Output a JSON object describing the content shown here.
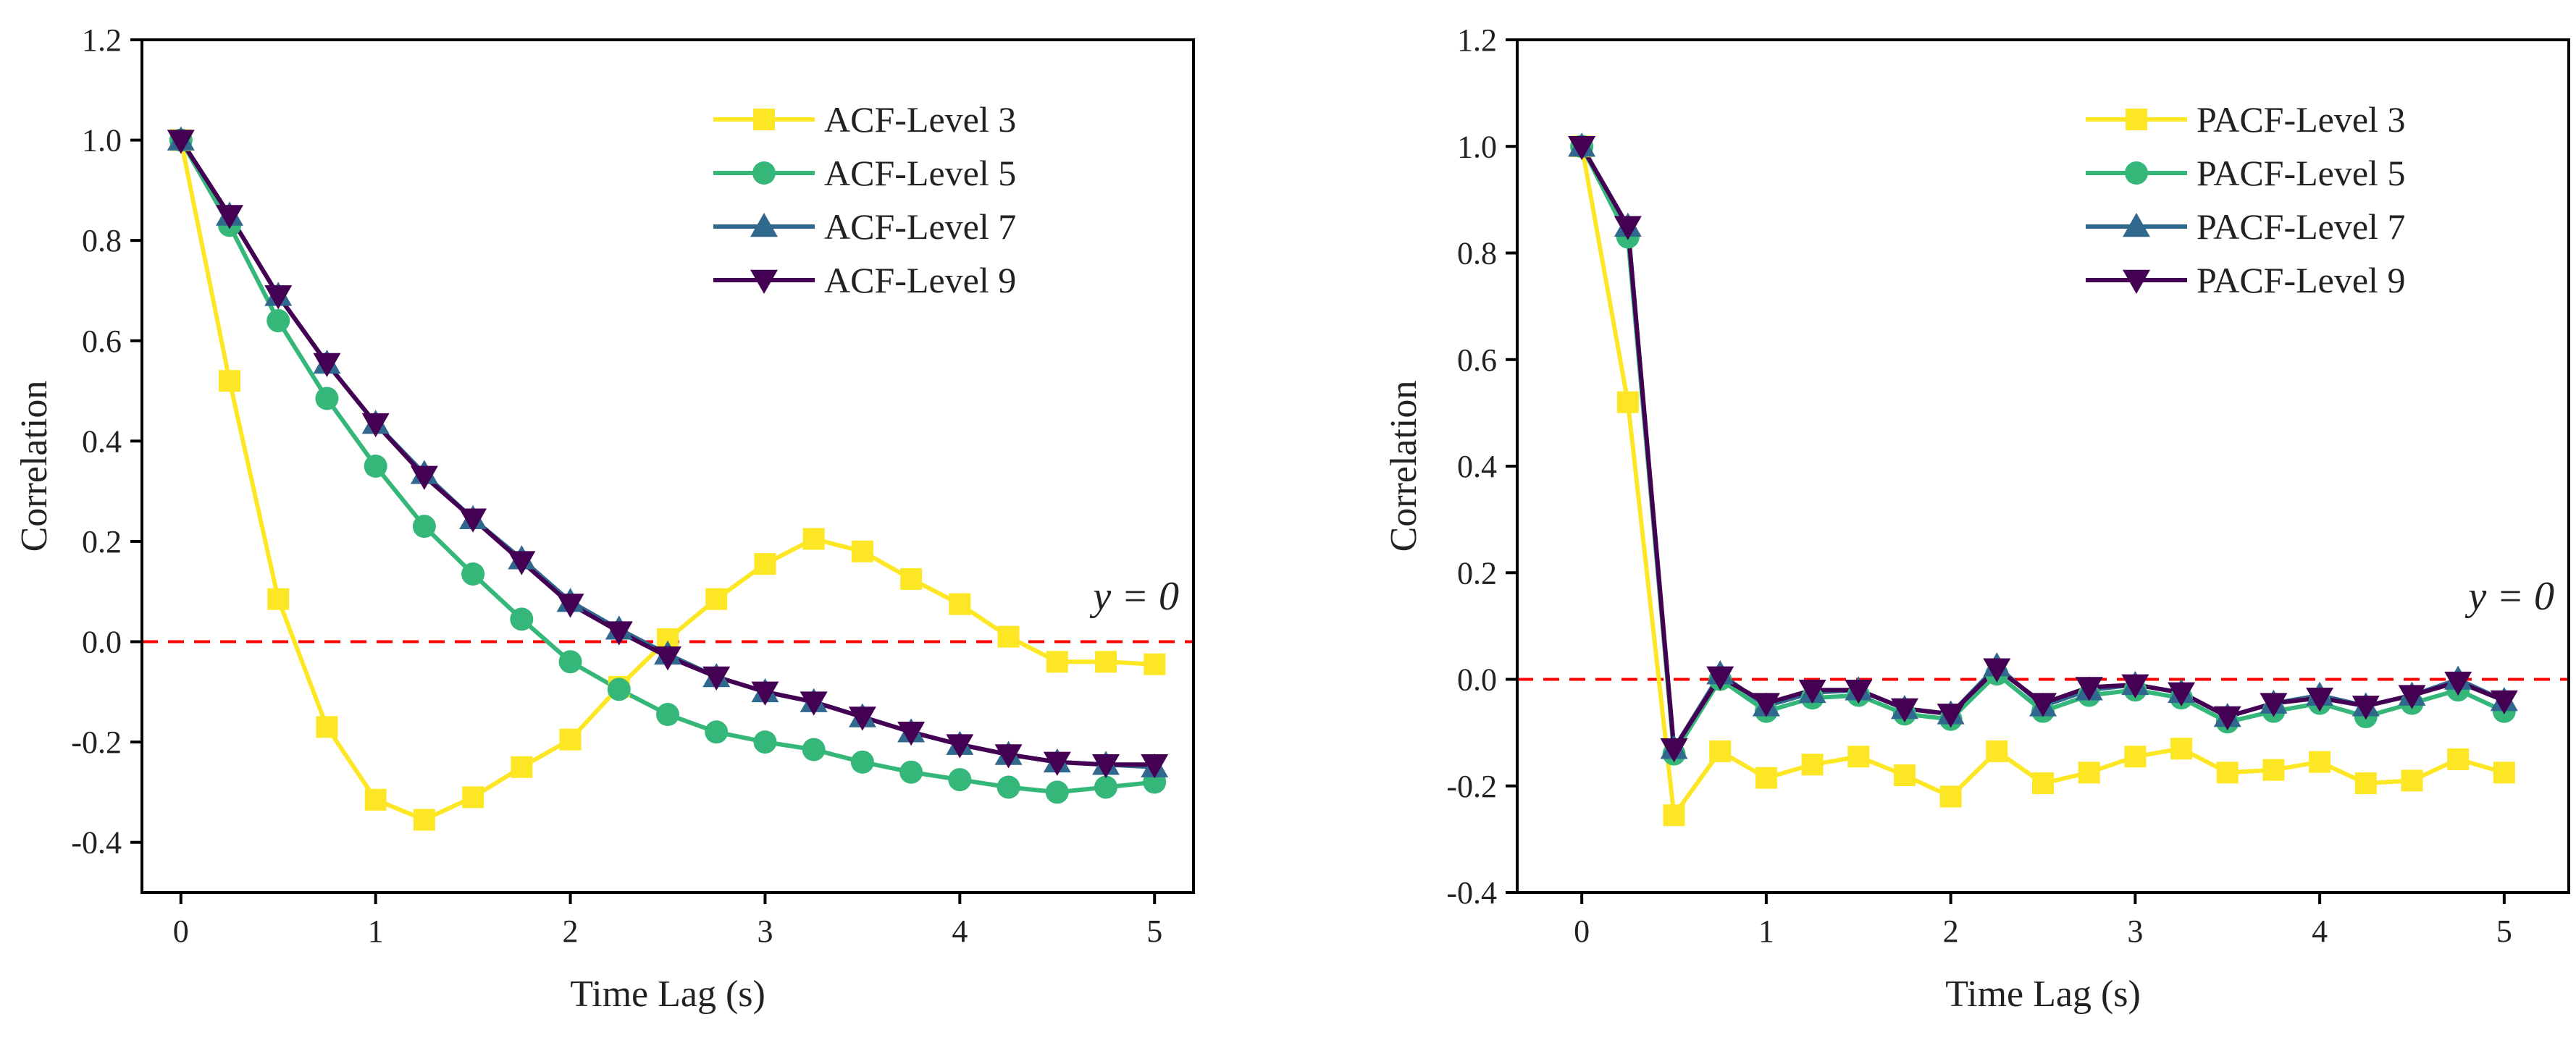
{
  "colors": {
    "level3": "#FDE725",
    "level5": "#35B779",
    "level7": "#31688E",
    "level9": "#440154",
    "ref_line": "#FF0000",
    "axis": "#000000"
  },
  "chart_data": [
    {
      "type": "line",
      "title": "",
      "xlabel": "Time Lag (s)",
      "ylabel": "Correlation",
      "xlim": [
        -0.2,
        5.2
      ],
      "ylim": [
        -0.5,
        1.2
      ],
      "xticks": [
        0,
        1,
        2,
        3,
        4,
        5
      ],
      "xtick_labels": [
        "0",
        "1",
        "2",
        "3",
        "4",
        "5"
      ],
      "yticks": [
        -0.4,
        -0.2,
        0.0,
        0.2,
        0.4,
        0.6,
        0.8,
        1.0,
        1.2
      ],
      "ytick_labels": [
        "-0.4",
        "-0.2",
        "0.0",
        "0.2",
        "0.4",
        "0.6",
        "0.8",
        "1.0",
        "1.2"
      ],
      "grid": false,
      "legend_position": "top-right",
      "annotation": "y = 0",
      "reference_line_y": 0,
      "x": [
        0,
        0.25,
        0.5,
        0.75,
        1,
        1.25,
        1.5,
        1.75,
        2,
        2.25,
        2.5,
        2.75,
        3,
        3.25,
        3.5,
        3.75,
        4,
        4.25,
        4.5,
        4.75,
        5
      ],
      "series": [
        {
          "name": "ACF-Level 3",
          "marker": "square",
          "color_key": "level3",
          "values": [
            1.0,
            0.52,
            0.085,
            -0.17,
            -0.315,
            -0.355,
            -0.31,
            -0.25,
            -0.195,
            -0.09,
            0.005,
            0.085,
            0.155,
            0.205,
            0.18,
            0.125,
            0.075,
            0.01,
            -0.04,
            -0.04,
            -0.045
          ]
        },
        {
          "name": "ACF-Level 5",
          "marker": "circle",
          "color_key": "level5",
          "values": [
            1.0,
            0.83,
            0.64,
            0.485,
            0.35,
            0.23,
            0.135,
            0.045,
            -0.04,
            -0.095,
            -0.145,
            -0.18,
            -0.2,
            -0.215,
            -0.24,
            -0.26,
            -0.275,
            -0.29,
            -0.3,
            -0.29,
            -0.28
          ]
        },
        {
          "name": "ACF-Level 7",
          "marker": "triangle-up",
          "color_key": "level7",
          "values": [
            1.0,
            0.85,
            0.69,
            0.555,
            0.435,
            0.335,
            0.245,
            0.165,
            0.08,
            0.025,
            -0.025,
            -0.07,
            -0.1,
            -0.12,
            -0.15,
            -0.18,
            -0.205,
            -0.225,
            -0.24,
            -0.245,
            -0.25
          ]
        },
        {
          "name": "ACF-Level 9",
          "marker": "triangle-down",
          "color_key": "level9",
          "values": [
            1.0,
            0.85,
            0.69,
            0.555,
            0.435,
            0.33,
            0.245,
            0.16,
            0.075,
            0.02,
            -0.03,
            -0.07,
            -0.1,
            -0.12,
            -0.15,
            -0.18,
            -0.205,
            -0.225,
            -0.24,
            -0.245,
            -0.245
          ]
        }
      ]
    },
    {
      "type": "line",
      "title": "",
      "xlabel": "Time Lag (s)",
      "ylabel": "Correlation",
      "xlim": [
        -0.35,
        5.35
      ],
      "ylim": [
        -0.4,
        1.2
      ],
      "xticks": [
        0,
        1,
        2,
        3,
        4,
        5
      ],
      "xtick_labels": [
        "0",
        "1",
        "2",
        "3",
        "4",
        "5"
      ],
      "yticks": [
        -0.4,
        -0.2,
        0.0,
        0.2,
        0.4,
        0.6,
        0.8,
        1.0,
        1.2
      ],
      "ytick_labels": [
        "-0.4",
        "-0.2",
        "0.0",
        "0.2",
        "0.4",
        "0.6",
        "0.8",
        "1.0",
        "1.2"
      ],
      "grid": false,
      "legend_position": "top-right",
      "annotation": "y = 0",
      "reference_line_y": 0,
      "x": [
        0,
        0.25,
        0.5,
        0.75,
        1,
        1.25,
        1.5,
        1.75,
        2,
        2.25,
        2.5,
        2.75,
        3,
        3.25,
        3.5,
        3.75,
        4,
        4.25,
        4.5,
        4.75,
        5
      ],
      "series": [
        {
          "name": "PACF-Level 3",
          "marker": "square",
          "color_key": "level3",
          "values": [
            1.0,
            0.52,
            -0.255,
            -0.135,
            -0.185,
            -0.16,
            -0.145,
            -0.18,
            -0.22,
            -0.135,
            -0.195,
            -0.175,
            -0.145,
            -0.13,
            -0.175,
            -0.17,
            -0.155,
            -0.195,
            -0.19,
            -0.15,
            -0.175
          ]
        },
        {
          "name": "PACF-Level 5",
          "marker": "circle",
          "color_key": "level5",
          "values": [
            1.0,
            0.83,
            -0.14,
            0.0,
            -0.06,
            -0.035,
            -0.03,
            -0.065,
            -0.075,
            0.01,
            -0.06,
            -0.03,
            -0.02,
            -0.035,
            -0.08,
            -0.06,
            -0.045,
            -0.07,
            -0.045,
            -0.02,
            -0.06
          ]
        },
        {
          "name": "PACF-Level 7",
          "marker": "triangle-up",
          "color_key": "level7",
          "values": [
            1.0,
            0.85,
            -0.13,
            0.01,
            -0.05,
            -0.025,
            -0.02,
            -0.055,
            -0.065,
            0.025,
            -0.05,
            -0.02,
            -0.01,
            -0.025,
            -0.07,
            -0.045,
            -0.03,
            -0.05,
            -0.03,
            0.0,
            -0.04
          ]
        },
        {
          "name": "PACF-Level 9",
          "marker": "triangle-down",
          "color_key": "level9",
          "values": [
            1.0,
            0.85,
            -0.13,
            0.005,
            -0.045,
            -0.02,
            -0.02,
            -0.055,
            -0.065,
            0.02,
            -0.045,
            -0.015,
            -0.01,
            -0.025,
            -0.07,
            -0.045,
            -0.035,
            -0.05,
            -0.03,
            -0.005,
            -0.04
          ]
        }
      ]
    }
  ]
}
